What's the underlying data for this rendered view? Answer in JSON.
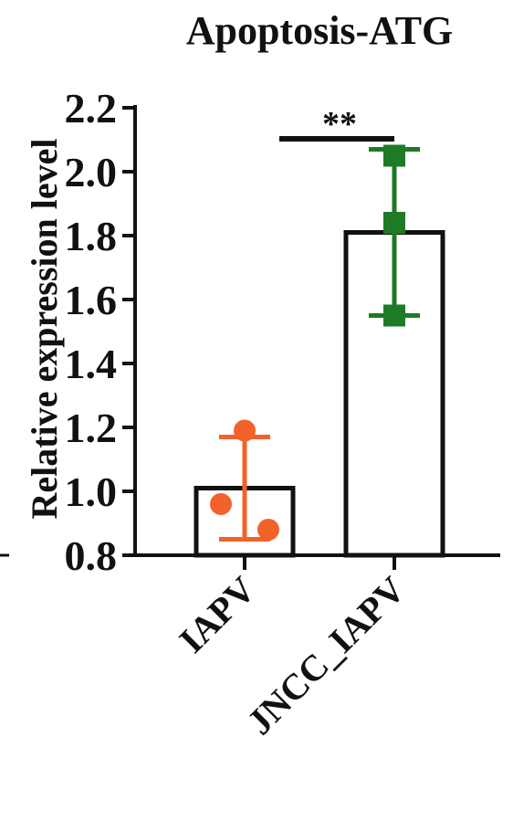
{
  "chart_data": {
    "type": "bar",
    "title": "Apoptosis-ATG",
    "ylabel": "Relative expression level",
    "xlabel": "",
    "ylim": [
      0.8,
      2.2
    ],
    "yticks": [
      "0.8",
      "1.0",
      "1.2",
      "1.4",
      "1.6",
      "1.8",
      "2.0",
      "2.2"
    ],
    "categories": [
      "IAPV",
      "JNCC_IAPV"
    ],
    "values": [
      1.01,
      1.81
    ],
    "error": [
      {
        "low": 0.85,
        "high": 1.17
      },
      {
        "low": 1.55,
        "high": 2.07
      }
    ],
    "points": [
      [
        1.19,
        0.96,
        0.88
      ],
      [
        2.05,
        1.84,
        1.55
      ]
    ],
    "colors": [
      "#f2622a",
      "#1f7a25"
    ],
    "markers": [
      "circle",
      "square"
    ],
    "significance": {
      "label": "**",
      "between": [
        0,
        1
      ]
    },
    "grid": false
  }
}
